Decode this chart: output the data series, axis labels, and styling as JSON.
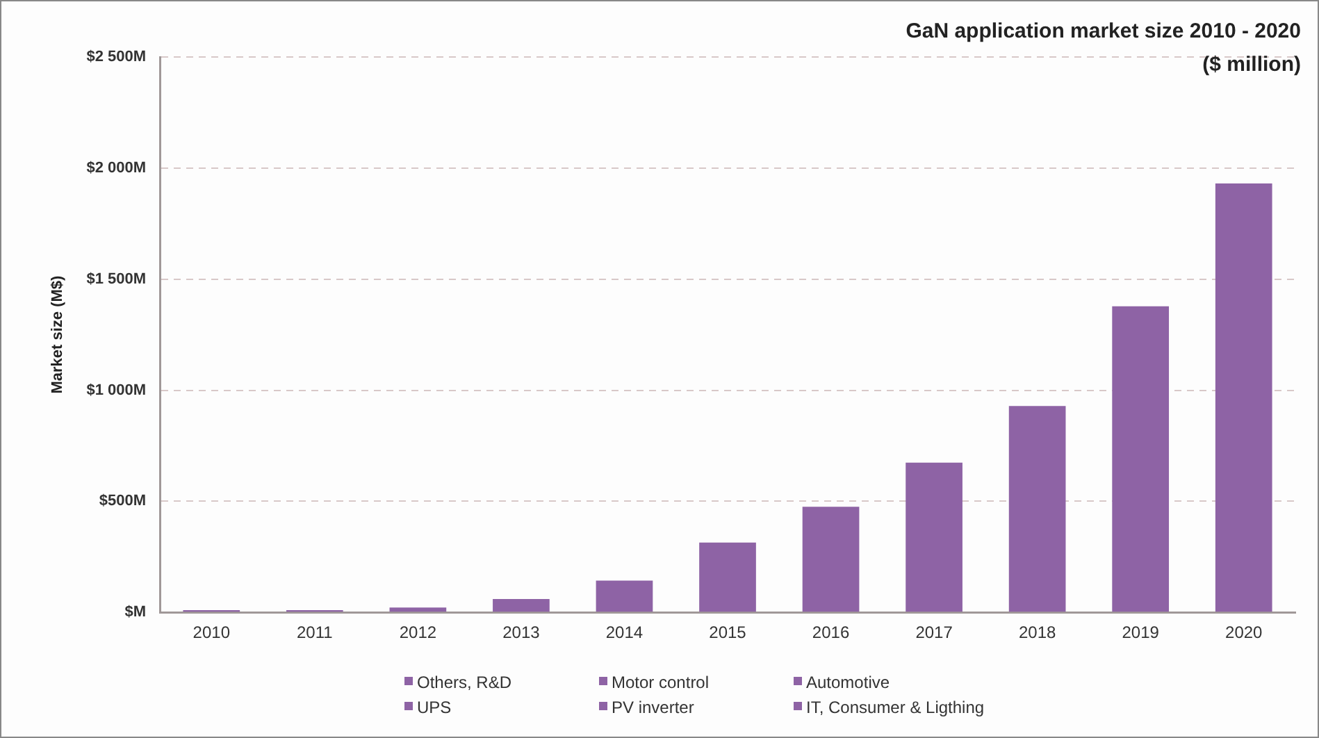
{
  "chart_data": {
    "type": "bar",
    "title": "GaN application market size 2010 - 2020 ($ million)",
    "ylabel": "Market size (M$)",
    "categories": [
      "2010",
      "2011",
      "2012",
      "2013",
      "2014",
      "2015",
      "2016",
      "2017",
      "2018",
      "2019",
      "2020"
    ],
    "values": [
      10,
      10,
      22,
      60,
      143,
      314,
      475,
      674,
      929,
      1378,
      1931
    ],
    "color": "#8e63a5",
    "ylim": [
      0,
      2500
    ],
    "yticks": [
      {
        "value": 0,
        "label": "$M"
      },
      {
        "value": 500,
        "label": "$500M"
      },
      {
        "value": 1000,
        "label": "$1 000M"
      },
      {
        "value": 1500,
        "label": "$1 500M"
      },
      {
        "value": 2000,
        "label": "$2 000M"
      },
      {
        "value": 2500,
        "label": "$2 500M"
      }
    ],
    "grid": "y",
    "annotations": [
      "Others, R&D",
      "Motor control",
      "Automotive",
      "UPS",
      "PV inverter",
      "IT, Consumer & Ligthing"
    ]
  }
}
